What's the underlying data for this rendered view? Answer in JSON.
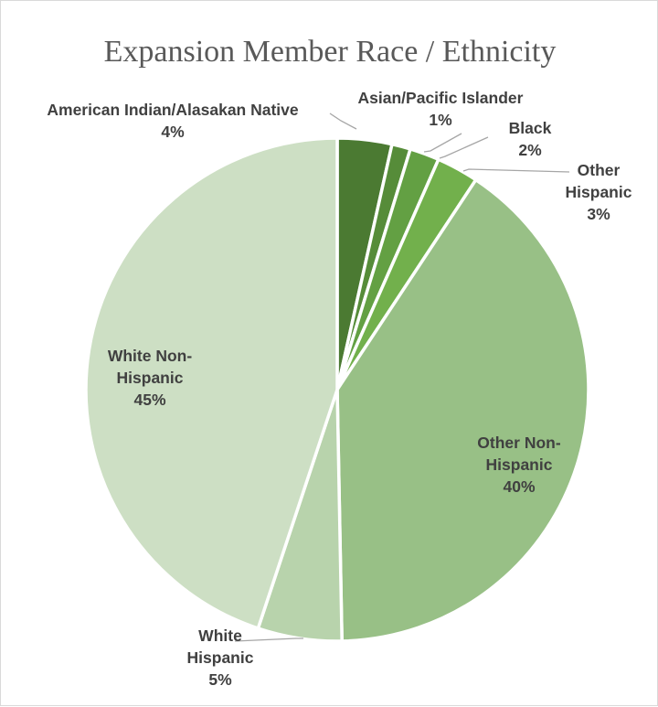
{
  "chart_data": {
    "type": "pie",
    "title": "Expansion Member Race / Ethnicity",
    "slices": [
      {
        "label_lines": [
          "American Indian/Alasakan Native"
        ],
        "value_label": "4%",
        "value": 3.5,
        "color": "#4b7a32"
      },
      {
        "label_lines": [
          "Asian/Pacific Islander"
        ],
        "value_label": "1%",
        "value": 1.2,
        "color": "#568c39"
      },
      {
        "label_lines": [
          "Black"
        ],
        "value_label": "2%",
        "value": 1.9,
        "color": "#63a043"
      },
      {
        "label_lines": [
          "Other",
          "Hispanic"
        ],
        "value_label": "3%",
        "value": 2.7,
        "color": "#72b04c"
      },
      {
        "label_lines": [
          "Other Non-",
          "Hispanic"
        ],
        "value_label": "40%",
        "value": 40.4,
        "color": "#98c086"
      },
      {
        "label_lines": [
          "White",
          "Hispanic"
        ],
        "value_label": "5%",
        "value": 5.4,
        "color": "#b8d3ac"
      },
      {
        "label_lines": [
          "White Non-",
          "Hispanic"
        ],
        "value_label": "45%",
        "value": 44.9,
        "color": "#cddfc4"
      }
    ],
    "legend": "none"
  }
}
